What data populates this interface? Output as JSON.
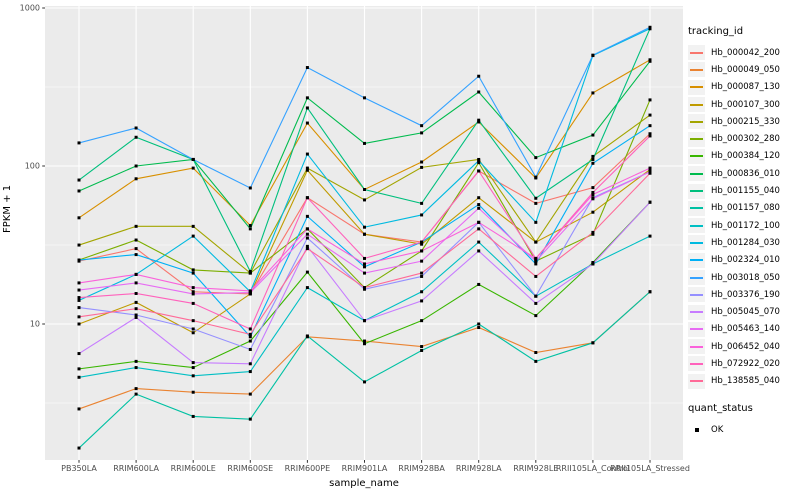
{
  "chart_data": {
    "type": "line",
    "title": "",
    "xlabel": "sample_name",
    "ylabel": "FPKM + 1",
    "y_scale": "log10",
    "ylim": [
      1.3,
      1050
    ],
    "y_major_ticks": [
      10,
      100,
      1000
    ],
    "y_minor_gridlines": [
      3.162,
      31.623,
      316.228
    ],
    "grid": "white on gray panel",
    "panel_color": "#EBEBEB",
    "gridline_color": "#FFFFFF",
    "tick_text_color": "#4D4D4D",
    "point_marker": "black-square",
    "legend_position": "right",
    "categories": [
      "PB350LA",
      "RRIM600LA",
      "RRIM600LE",
      "RRIM600SE",
      "RRIM600PE",
      "RRIM901LA",
      "RRIM928BA",
      "RRIM928LA",
      "RRIM928LE",
      "RRII105LA_Control",
      "RRII105LA_Stressed"
    ],
    "legend": {
      "title": "tracking_id"
    },
    "quant_legend": {
      "title": "quant_status",
      "items": [
        {
          "label": "OK",
          "marker": "black-square"
        }
      ]
    },
    "series": [
      {
        "name": "Hb_000042_200",
        "color": "#F8766D",
        "values": [
          25,
          30,
          16,
          15.5,
          63,
          37,
          33,
          93,
          58,
          73,
          160
        ]
      },
      {
        "name": "Hb_000049_050",
        "color": "#EA8331",
        "values": [
          2.9,
          3.9,
          3.7,
          3.6,
          8.3,
          7.8,
          7.2,
          9.5,
          6.6,
          7.6,
          16
        ]
      },
      {
        "name": "Hb_000087_130",
        "color": "#D89000",
        "values": [
          47,
          83,
          97,
          42,
          187,
          71,
          106,
          190,
          84,
          290,
          470
        ]
      },
      {
        "name": "Hb_000107_300",
        "color": "#C09B00",
        "values": [
          10,
          13.7,
          8.8,
          15.5,
          94,
          37,
          32,
          63,
          33,
          51,
          95
        ]
      },
      {
        "name": "Hb_000215_330",
        "color": "#A3A500",
        "values": [
          31.6,
          41.5,
          41.5,
          21,
          97,
          61,
          98,
          110,
          33,
          115,
          210
        ]
      },
      {
        "name": "Hb_000302_280",
        "color": "#7CAE00",
        "values": [
          25.4,
          34,
          22,
          21,
          40,
          17,
          29,
          105,
          25,
          37,
          262
        ]
      },
      {
        "name": "Hb_000384_120",
        "color": "#39B600",
        "values": [
          5.2,
          5.8,
          5.3,
          7.8,
          21.3,
          7.5,
          10.5,
          17.8,
          11.3,
          24.5,
          59
        ]
      },
      {
        "name": "Hb_000836_010",
        "color": "#00BB4E",
        "values": [
          69.5,
          100,
          110,
          40,
          270,
          139,
          162,
          294,
          113,
          157,
          460
        ]
      },
      {
        "name": "Hb_001155_040",
        "color": "#00BF7D",
        "values": [
          81.5,
          152,
          110,
          21.5,
          233,
          71,
          58,
          195,
          62.5,
          110,
          740
        ]
      },
      {
        "name": "Hb_001157_080",
        "color": "#00C1A3",
        "values": [
          1.64,
          3.6,
          2.6,
          2.5,
          8.4,
          4.3,
          6.8,
          10,
          5.8,
          7.6,
          16
        ]
      },
      {
        "name": "Hb_001172_100",
        "color": "#00BFC4",
        "values": [
          4.6,
          5.3,
          4.7,
          5.0,
          17,
          10.5,
          16,
          33,
          15,
          24,
          36
        ]
      },
      {
        "name": "Hb_001284_030",
        "color": "#00BAE0",
        "values": [
          14.1,
          20.6,
          36,
          16,
          119,
          41,
          49,
          108,
          44,
          500,
          740
        ]
      },
      {
        "name": "Hb_002324_010",
        "color": "#00B0F6",
        "values": [
          25.4,
          27.5,
          21,
          8.3,
          48,
          23,
          33,
          57,
          24,
          104,
          180
        ]
      },
      {
        "name": "Hb_003018_050",
        "color": "#35A2FF",
        "values": [
          140,
          174,
          110,
          72.6,
          420,
          270,
          180,
          370,
          85,
          503,
          755
        ]
      },
      {
        "name": "Hb_003376_190",
        "color": "#9590FF",
        "values": [
          12.7,
          11.4,
          9.3,
          6.9,
          35,
          16.6,
          20,
          44,
          15,
          63,
          92
        ]
      },
      {
        "name": "Hb_005045_070",
        "color": "#C77CFF",
        "values": [
          6.5,
          11,
          5.7,
          5.6,
          31,
          10.5,
          14,
          29,
          13.5,
          24,
          59
        ]
      },
      {
        "name": "Hb_005463_140",
        "color": "#E76BF3",
        "values": [
          16.4,
          18.2,
          15.5,
          15.8,
          37,
          21,
          25,
          54,
          25,
          62,
          92
        ]
      },
      {
        "name": "Hb_006452_040",
        "color": "#FA62DB",
        "values": [
          18.2,
          20.6,
          17,
          16.2,
          40,
          24,
          29,
          44,
          26,
          66,
          97
        ]
      },
      {
        "name": "Hb_072922_020",
        "color": "#FF62BC",
        "values": [
          14.7,
          15.6,
          13.5,
          9.3,
          63,
          26,
          33,
          93,
          26,
          68,
          155
        ]
      },
      {
        "name": "Hb_138585_040",
        "color": "#FF6A98",
        "values": [
          11.1,
          12.5,
          10.5,
          8.6,
          30,
          17,
          21,
          40,
          20,
          38,
          90
        ]
      }
    ]
  }
}
